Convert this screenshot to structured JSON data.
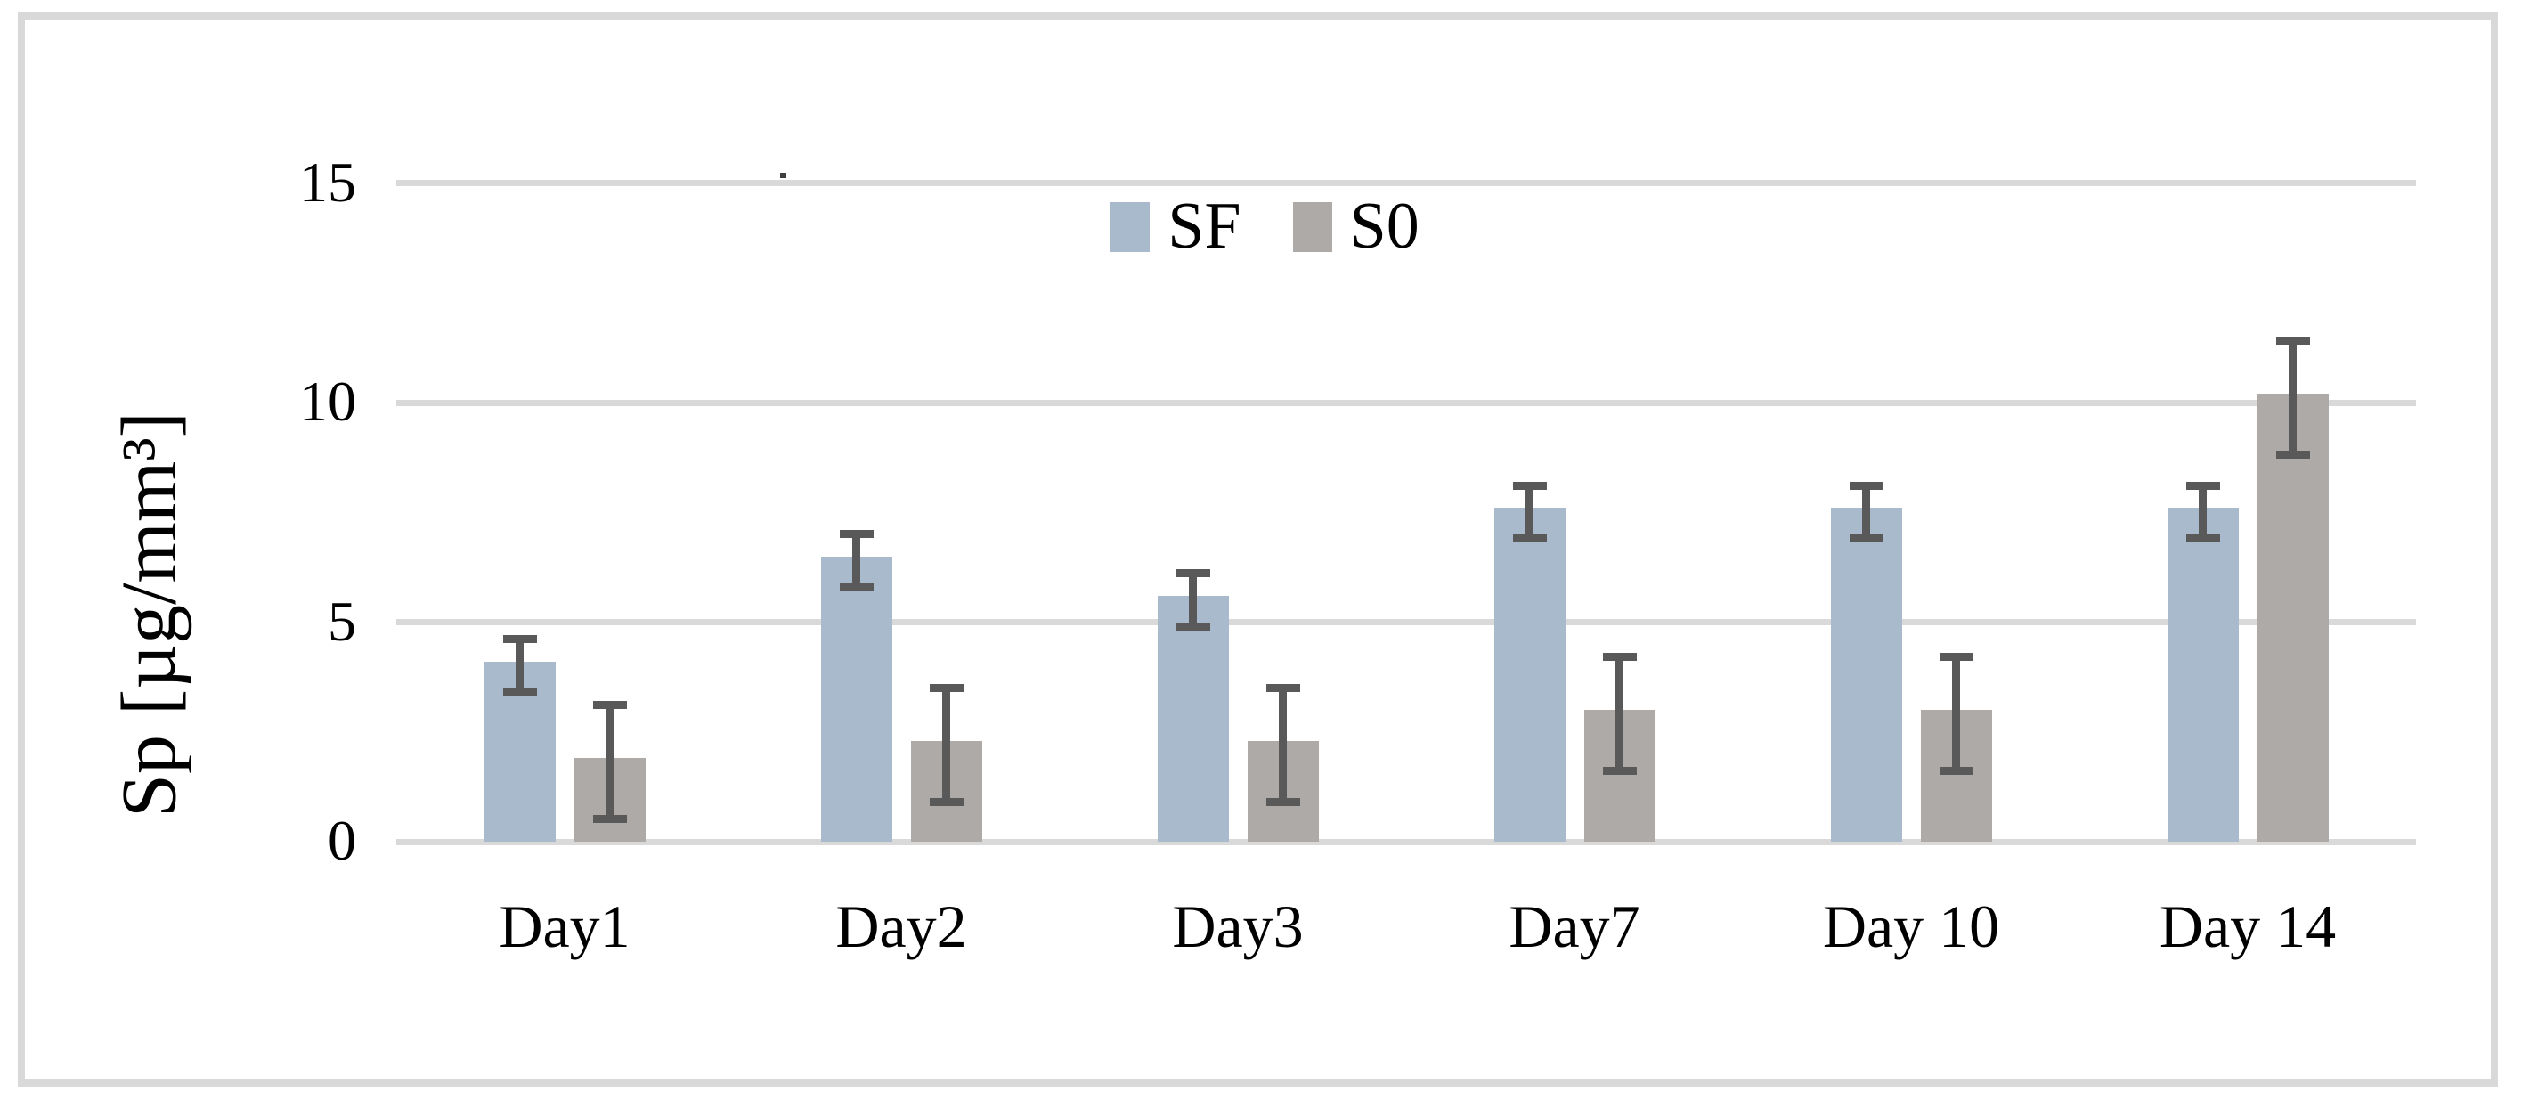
{
  "figure": {
    "background_color": "#ffffff",
    "frame_color": "#d9d9d9"
  },
  "chart_data": {
    "type": "bar",
    "title": "",
    "categories": [
      "Day1",
      "Day2",
      "Day3",
      "Day7",
      "Day 10",
      "Day 14"
    ],
    "series": [
      {
        "name": "SF",
        "color": "#a8bacc",
        "values": [
          4.1,
          6.5,
          5.6,
          7.6,
          7.6,
          7.6
        ],
        "errors": [
          0.6,
          0.6,
          0.6,
          0.6,
          0.6,
          0.6
        ]
      },
      {
        "name": "S0",
        "color": "#aeaaa8",
        "values": [
          1.9,
          2.3,
          2.3,
          3.0,
          3.0,
          10.2
        ],
        "errors": [
          1.3,
          1.3,
          1.3,
          1.3,
          1.3,
          1.3
        ]
      }
    ],
    "xlabel": "",
    "ylabel": "Sp [µg/mm³]",
    "yticks": [
      "0",
      "5",
      "10",
      "15"
    ],
    "ylim": [
      0,
      15
    ],
    "grid": true,
    "gridline_color": "#d9d9d9",
    "axis_line_color": "#d9d9d9",
    "error_bar_color": "#595959",
    "text_color": "#000000",
    "legend_position": "top-center"
  }
}
